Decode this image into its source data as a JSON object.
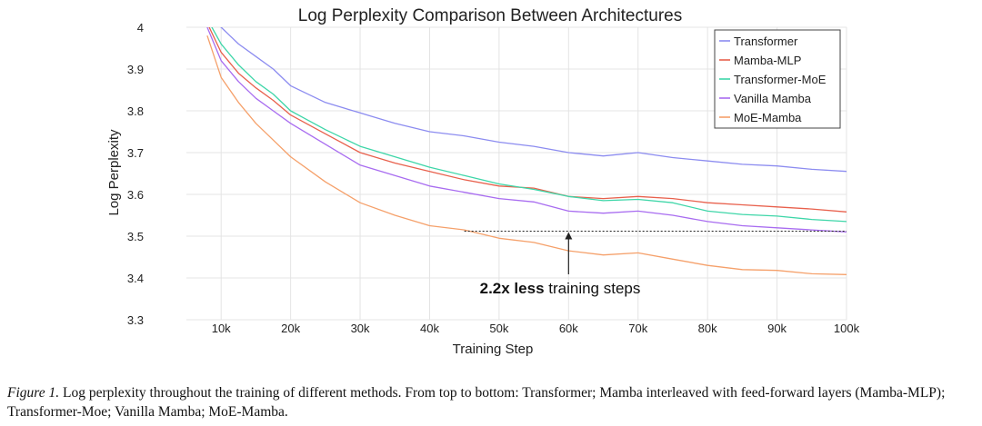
{
  "chart_data": {
    "type": "line",
    "title": "Log Perplexity Comparison Between Architectures",
    "xlabel": "Training Step",
    "ylabel": "Log Perplexity",
    "xlim": [
      5000,
      100000
    ],
    "ylim": [
      3.3,
      4.0
    ],
    "x_ticks": [
      10000,
      20000,
      30000,
      40000,
      50000,
      60000,
      70000,
      80000,
      90000,
      100000
    ],
    "x_tick_labels": [
      "10k",
      "20k",
      "30k",
      "40k",
      "50k",
      "60k",
      "70k",
      "80k",
      "90k",
      "100k"
    ],
    "y_ticks": [
      3.3,
      3.4,
      3.5,
      3.6,
      3.7,
      3.8,
      3.9,
      4.0
    ],
    "y_tick_labels": [
      "3.3",
      "3.4",
      "3.5",
      "3.6",
      "3.7",
      "3.8",
      "3.9",
      "4"
    ],
    "grid": true,
    "legend_position": "top-right",
    "x": [
      8000,
      10000,
      12500,
      15000,
      17500,
      20000,
      25000,
      30000,
      35000,
      40000,
      45000,
      50000,
      55000,
      60000,
      65000,
      70000,
      75000,
      80000,
      85000,
      90000,
      95000,
      100000
    ],
    "series": [
      {
        "name": "Transformer",
        "color": "#8c8cf0",
        "values": [
          4.02,
          4.0,
          3.96,
          3.93,
          3.9,
          3.86,
          3.82,
          3.795,
          3.77,
          3.75,
          3.74,
          3.725,
          3.715,
          3.7,
          3.692,
          3.7,
          3.688,
          3.68,
          3.672,
          3.668,
          3.66,
          3.655
        ]
      },
      {
        "name": "Mamba-MLP",
        "color": "#e8604c",
        "values": [
          4.01,
          3.94,
          3.89,
          3.855,
          3.825,
          3.79,
          3.745,
          3.7,
          3.675,
          3.655,
          3.635,
          3.62,
          3.615,
          3.595,
          3.59,
          3.595,
          3.59,
          3.58,
          3.575,
          3.57,
          3.565,
          3.558
        ]
      },
      {
        "name": "Transformer-MoE",
        "color": "#3ed6a8",
        "values": [
          4.02,
          3.96,
          3.91,
          3.87,
          3.84,
          3.8,
          3.755,
          3.715,
          3.69,
          3.665,
          3.645,
          3.625,
          3.612,
          3.595,
          3.585,
          3.588,
          3.58,
          3.56,
          3.552,
          3.548,
          3.54,
          3.535
        ]
      },
      {
        "name": "Vanilla Mamba",
        "color": "#a86cf0",
        "values": [
          4.0,
          3.92,
          3.87,
          3.83,
          3.8,
          3.77,
          3.72,
          3.67,
          3.645,
          3.62,
          3.605,
          3.59,
          3.582,
          3.56,
          3.555,
          3.56,
          3.55,
          3.535,
          3.525,
          3.52,
          3.515,
          3.51
        ]
      },
      {
        "name": "MoE-Mamba",
        "color": "#f5a06a",
        "values": [
          3.98,
          3.88,
          3.82,
          3.77,
          3.73,
          3.69,
          3.63,
          3.58,
          3.55,
          3.525,
          3.515,
          3.495,
          3.485,
          3.465,
          3.455,
          3.46,
          3.445,
          3.43,
          3.42,
          3.418,
          3.41,
          3.408
        ]
      }
    ],
    "annotation": {
      "text_bold": "2.2x less",
      "text_rest": " training steps",
      "reference_y": 3.512,
      "reference_x_range": [
        45000,
        100000
      ],
      "arrow_x": 60000
    }
  },
  "caption": {
    "label": "Figure 1.",
    "text": " Log perplexity throughout the training of different methods.  From top to bottom: Transformer; Mamba interleaved with feed-forward layers (Mamba-MLP); Transformer-Moe; Vanilla Mamba; MoE-Mamba."
  }
}
